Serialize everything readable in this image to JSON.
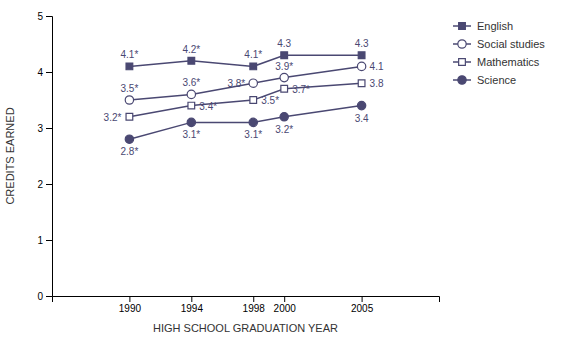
{
  "chart_data": {
    "type": "line",
    "x": [
      1990,
      1994,
      1998,
      2000,
      2005
    ],
    "xlabel": "HIGH SCHOOL GRADUATION YEAR",
    "ylabel": "CREDITS EARNED",
    "xlim": [
      1985,
      2010
    ],
    "xticks": [
      1990,
      1994,
      1998,
      2000,
      2005
    ],
    "ylim": [
      0,
      5
    ],
    "yticks": [
      0,
      1,
      2,
      3,
      4,
      5
    ],
    "grid": false,
    "legend": "right",
    "data_labels": true,
    "series": [
      {
        "name": "English",
        "color": "#4a4872",
        "marker": "square",
        "values": [
          4.1,
          4.2,
          4.1,
          4.3,
          4.3
        ],
        "value_labels": [
          "4.1*",
          "4.2*",
          "4.1*",
          "4.3",
          "4.3"
        ]
      },
      {
        "name": "Social studies",
        "color": "#4a4872",
        "marker": "circle-open",
        "values": [
          3.5,
          3.6,
          3.8,
          3.9,
          4.1
        ],
        "value_labels": [
          "3.5*",
          "3.6*",
          "3.8*",
          "3.9*",
          "4.1"
        ]
      },
      {
        "name": "Mathematics",
        "color": "#4a4872",
        "marker": "square-open",
        "values": [
          3.2,
          3.4,
          3.5,
          3.7,
          3.8
        ],
        "value_labels": [
          "3.2*",
          "3.4*",
          "3.5*",
          "3.7*",
          "3.8"
        ]
      },
      {
        "name": "Science",
        "color": "#4a4872",
        "marker": "circle",
        "values": [
          2.8,
          3.1,
          3.1,
          3.2,
          3.4
        ],
        "value_labels": [
          "2.8*",
          "3.1*",
          "3.1*",
          "3.2*",
          "3.4"
        ]
      }
    ]
  }
}
